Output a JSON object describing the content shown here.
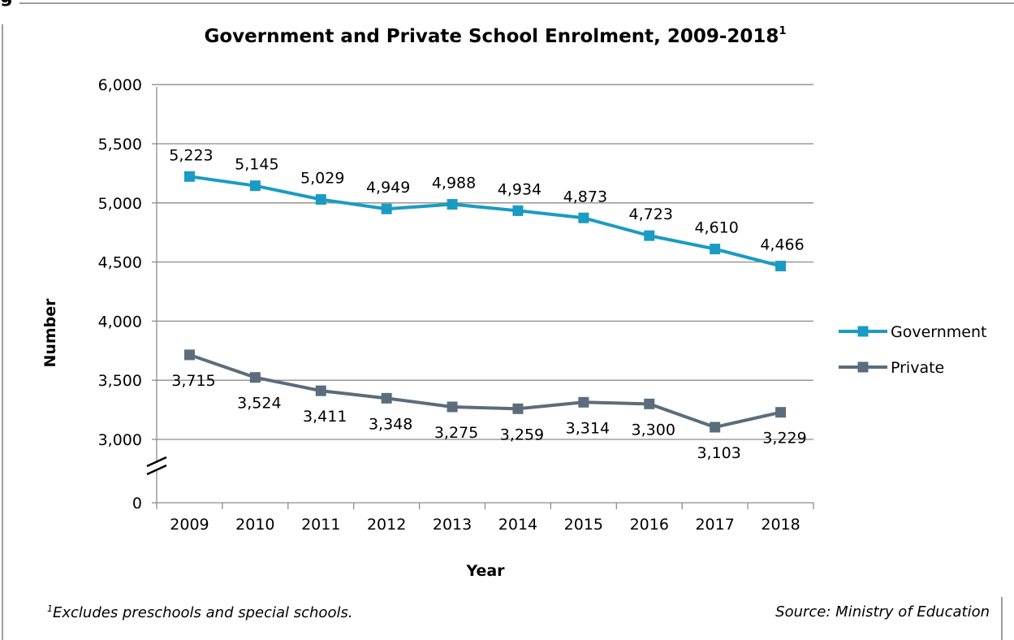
{
  "corner_label": "g",
  "chart_data": {
    "type": "line",
    "title": "Government and Private School Enrolment, 2009-2018",
    "title_superscript": "1",
    "xlabel": "Year",
    "ylabel": "Number",
    "categories": [
      "2009",
      "2010",
      "2011",
      "2012",
      "2013",
      "2014",
      "2015",
      "2016",
      "2017",
      "2018"
    ],
    "ylim": [
      2800,
      6000
    ],
    "axis_break": true,
    "yticks": [
      0,
      3000,
      3500,
      4000,
      4500,
      5000,
      5500,
      6000
    ],
    "ytick_labels": [
      "0",
      "3,000",
      "3,500",
      "4,000",
      "4,500",
      "5,000",
      "5,500",
      "6,000"
    ],
    "grid": true,
    "legend_position": "right",
    "series": [
      {
        "name": "Government",
        "color": "#1a9bc3",
        "values": [
          5223,
          5145,
          5029,
          4949,
          4988,
          4934,
          4873,
          4723,
          4610,
          4466
        ],
        "labels": [
          "5,223",
          "5,145",
          "5,029",
          "4,949",
          "4,988",
          "4,934",
          "4,873",
          "4,723",
          "4,610",
          "4,466"
        ]
      },
      {
        "name": "Private",
        "color": "#5b6d7a",
        "values": [
          3715,
          3524,
          3411,
          3348,
          3275,
          3259,
          3314,
          3300,
          3103,
          3229
        ],
        "labels": [
          "3,715",
          "3,524",
          "3,411",
          "3,348",
          "3,275",
          "3,259",
          "3,314",
          "3,300",
          "3,103",
          "3,229"
        ]
      }
    ]
  },
  "footnote": {
    "marker": "1",
    "text": "Excludes preschools and special schools."
  },
  "source": "Source: Ministry of Education"
}
